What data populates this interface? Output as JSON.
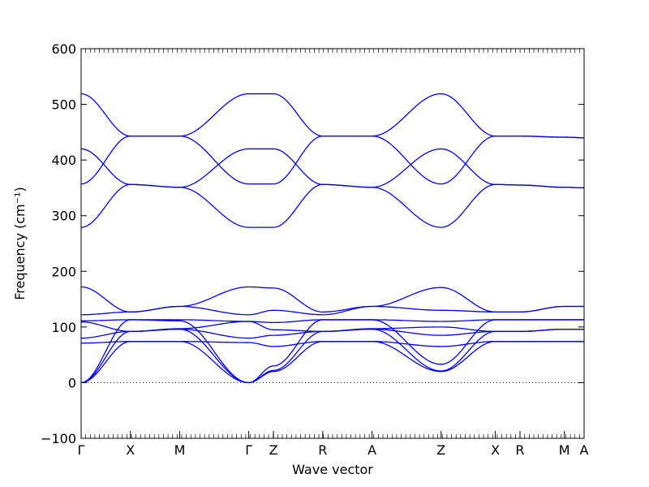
{
  "chart_data": {
    "type": "line",
    "title": "",
    "xlabel": "Wave vector",
    "ylabel": "Frequency (cm⁻¹)",
    "ylim": [
      -100,
      600
    ],
    "yticks": [
      -100,
      0,
      100,
      200,
      300,
      400,
      500,
      600
    ],
    "grid": false,
    "legend": "none",
    "series_color": "#0000ff",
    "zero_line_color": "#000000",
    "x_range": [
      0,
      10.2
    ],
    "path_points": [
      {
        "label": "Γ",
        "x": 0.0
      },
      {
        "label": "X",
        "x": 1.0
      },
      {
        "label": "M",
        "x": 2.0
      },
      {
        "label": "Γ",
        "x": 3.4
      },
      {
        "label": "Z",
        "x": 3.9
      },
      {
        "label": "R",
        "x": 4.9
      },
      {
        "label": "A",
        "x": 5.9
      },
      {
        "label": "Z",
        "x": 7.3
      },
      {
        "label": "X",
        "x": 8.4
      },
      {
        "label": "R",
        "x": 8.9
      },
      {
        "label": "M",
        "x": 9.8
      },
      {
        "label": "A",
        "x": 10.2
      }
    ],
    "series": [
      {
        "x": [
          0,
          1.0,
          2.0,
          3.4,
          3.9,
          4.9,
          5.9,
          7.3,
          8.4,
          8.9,
          9.8,
          10.2
        ],
        "values": [
          519,
          443,
          443,
          519,
          519,
          443,
          443,
          519,
          443,
          443,
          441,
          440
        ]
      },
      {
        "x": [
          0,
          1.0,
          2.0,
          3.4,
          3.9,
          4.9,
          5.9,
          7.3,
          8.4,
          8.9,
          9.8,
          10.2
        ],
        "values": [
          420,
          356,
          351,
          420,
          420,
          356,
          351,
          420,
          356,
          355,
          351,
          350
        ]
      },
      {
        "x": [
          0,
          1.0,
          2.0,
          3.4,
          3.9,
          4.9,
          5.9,
          7.3,
          8.4,
          8.9,
          9.8,
          10.2
        ],
        "values": [
          357,
          443,
          443,
          357,
          357,
          443,
          443,
          357,
          443,
          443,
          441,
          440
        ]
      },
      {
        "x": [
          0,
          1.0,
          2.0,
          3.4,
          3.9,
          4.9,
          5.9,
          7.3,
          8.4,
          8.9,
          9.8,
          10.2
        ],
        "values": [
          279,
          356,
          351,
          279,
          279,
          356,
          351,
          279,
          356,
          355,
          351,
          350
        ]
      },
      {
        "x": [
          0,
          1.0,
          2.0,
          3.4,
          3.9,
          4.9,
          5.9,
          7.3,
          8.4,
          8.9,
          9.8,
          10.2
        ],
        "values": [
          172,
          127,
          137,
          172,
          170,
          127,
          137,
          171,
          127,
          127,
          137,
          137
        ]
      },
      {
        "x": [
          0,
          1.0,
          2.0,
          3.4,
          3.9,
          4.9,
          5.9,
          7.3,
          8.4,
          8.9,
          9.8,
          10.2
        ],
        "values": [
          122,
          127,
          137,
          122,
          130,
          122,
          137,
          130,
          127,
          127,
          137,
          137
        ]
      },
      {
        "x": [
          0,
          1.0,
          2.0,
          3.4,
          3.9,
          4.9,
          5.9,
          7.3,
          8.4,
          8.9,
          9.8,
          10.2
        ],
        "values": [
          111,
          113,
          113,
          110,
          108,
          113,
          113,
          110,
          113,
          113,
          113,
          113
        ]
      },
      {
        "x": [
          0,
          1.0,
          2.0,
          3.4,
          3.9,
          4.9,
          5.9,
          7.3,
          8.4,
          8.9,
          9.8,
          10.2
        ],
        "values": [
          109,
          92,
          97,
          110,
          95,
          92,
          97,
          100,
          92,
          92,
          96,
          96
        ]
      },
      {
        "x": [
          0,
          1.0,
          2.0,
          3.4,
          3.9,
          4.9,
          5.9,
          7.3,
          8.4,
          8.9,
          9.8,
          10.2
        ],
        "values": [
          80,
          92,
          96,
          80,
          85,
          92,
          96,
          85,
          92,
          92,
          96,
          96
        ]
      },
      {
        "x": [
          0,
          1.0,
          2.0,
          3.4,
          3.9,
          4.9,
          5.9,
          7.3,
          8.4,
          8.9,
          9.8,
          10.2
        ],
        "values": [
          71,
          74,
          74,
          72,
          65,
          74,
          74,
          65,
          74,
          74,
          74,
          74
        ]
      },
      {
        "x": [
          0,
          1.0,
          2.0,
          3.4,
          3.9,
          4.9,
          5.9,
          7.3,
          8.4,
          8.9,
          9.8,
          10.2
        ],
        "values": [
          0,
          113,
          111,
          0,
          30,
          113,
          113,
          33,
          113,
          113,
          113,
          113
        ]
      },
      {
        "x": [
          0,
          1.0,
          2.0,
          3.4,
          3.9,
          4.9,
          5.9,
          7.3,
          8.4,
          8.9,
          9.8,
          10.2
        ],
        "values": [
          0,
          92,
          96,
          0,
          22,
          92,
          96,
          21,
          92,
          92,
          96,
          96
        ]
      },
      {
        "x": [
          0,
          1.0,
          2.0,
          3.4,
          3.9,
          4.9,
          5.9,
          7.3,
          8.4,
          8.9,
          9.8,
          10.2
        ],
        "values": [
          0,
          74,
          74,
          0,
          20,
          74,
          74,
          20,
          74,
          74,
          74,
          74
        ]
      }
    ]
  }
}
